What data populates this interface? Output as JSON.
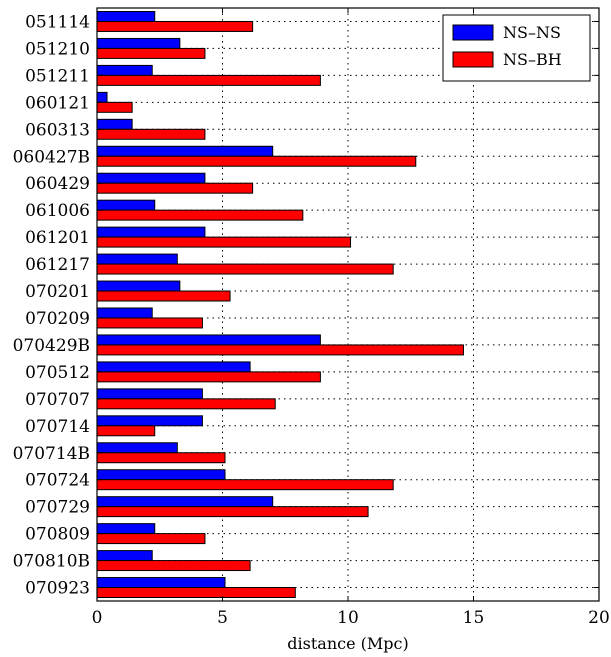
{
  "chart_data": {
    "type": "bar",
    "orientation": "horizontal",
    "xlabel": "distance (Mpc)",
    "ylabel": "",
    "xlim": [
      0,
      20
    ],
    "xticks": [
      "0",
      "5",
      "10",
      "15",
      "20"
    ],
    "grid": true,
    "legend_position": "top-right",
    "categories": [
      "051114",
      "051210",
      "051211",
      "060121",
      "060313",
      "060427B",
      "060429",
      "061006",
      "061201",
      "061217",
      "070201",
      "070209",
      "070429B",
      "070512",
      "070707",
      "070714",
      "070714B",
      "070724",
      "070729",
      "070809",
      "070810B",
      "070923"
    ],
    "series": [
      {
        "name": "NS–NS",
        "color": "#0000ff",
        "values": [
          2.3,
          3.3,
          2.2,
          0.4,
          1.4,
          7.0,
          4.3,
          2.3,
          4.3,
          3.2,
          3.3,
          2.2,
          8.9,
          6.1,
          4.2,
          4.2,
          3.2,
          5.1,
          7.0,
          2.3,
          2.2,
          5.1
        ]
      },
      {
        "name": "NS–BH",
        "color": "#ff0000",
        "values": [
          6.2,
          4.3,
          8.9,
          1.4,
          4.3,
          12.7,
          6.2,
          8.2,
          10.1,
          11.8,
          5.3,
          4.2,
          14.6,
          8.9,
          7.1,
          2.3,
          5.1,
          11.8,
          10.8,
          4.3,
          6.1,
          7.9
        ]
      }
    ]
  }
}
